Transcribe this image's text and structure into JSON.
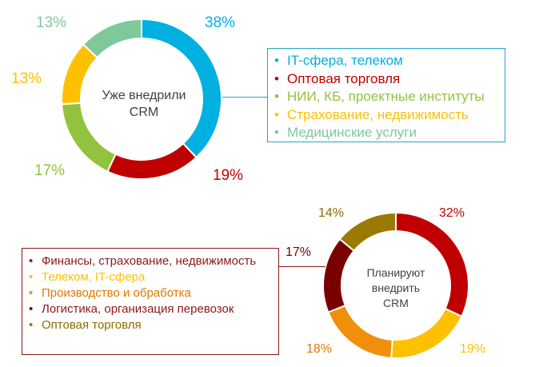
{
  "charts": [
    {
      "center_lines": [
        "Уже внедрили",
        "CRM"
      ],
      "chart_data": {
        "type": "pie",
        "categories": [
          "IT-сфера, телеком",
          "Оптовая торговля",
          "НИИ, КБ, проектные институты",
          "Страхование, недвижимость",
          "Медицинские услуги"
        ],
        "values": [
          38,
          19,
          17,
          13,
          13
        ],
        "value_labels": [
          "38%",
          "19%",
          "17%",
          "13%",
          "13%"
        ],
        "colors": [
          "#00b0e0",
          "#c00000",
          "#92c23e",
          "#ffc000",
          "#7ec89a"
        ],
        "legend_dot_colors": [
          "#00b0e0",
          "#c00000",
          "#92c23e",
          "#ffc000",
          "#7ec89a"
        ],
        "legend_text_colors": [
          "#00b0e0",
          "#c00000",
          "#92c23e",
          "#ffc000",
          "#7ec89a"
        ],
        "label_colors": [
          "#00b0e0",
          "#c00000",
          "#92c23e",
          "#ffc000",
          "#7ec89a"
        ],
        "legend_placement": "right"
      }
    },
    {
      "center_lines": [
        "Планируют",
        "внедрить",
        "CRM"
      ],
      "chart_data": {
        "type": "pie",
        "categories": [
          "Финансы, страхование, недвижимость",
          "Телеком, IT-сфера",
          "Производство и обработка",
          "Логистика, организация перевозок",
          "Оптовая торговля"
        ],
        "values": [
          32,
          19,
          18,
          17,
          14
        ],
        "value_labels": [
          "32%",
          "19%",
          "18%",
          "17%",
          "14%"
        ],
        "colors": [
          "#c00000",
          "#ffc000",
          "#f0900a",
          "#7a0000",
          "#9a7a00"
        ],
        "legend_dot_colors": [
          "#c00000",
          "#ffc000",
          "#f0900a",
          "#7a0000",
          "#9a7a00"
        ],
        "legend_text_colors": [
          "#8a1a1a",
          "#ffc000",
          "#e07800",
          "#8a1a1a",
          "#8a6e00"
        ],
        "label_colors": [
          "#c00000",
          "#ffc000",
          "#e07800",
          "#7a0000",
          "#8a6e00"
        ],
        "legend_placement": "left"
      }
    }
  ]
}
